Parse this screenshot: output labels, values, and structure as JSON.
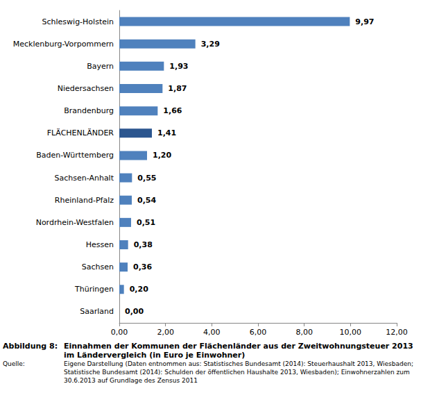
{
  "chart_data": {
    "type": "bar",
    "orientation": "horizontal",
    "title": "Einnahmen der Kommunen der Flächenländer aus der Zweitwohnungsteuer 2013 im Ländervergleich (in Euro je Einwohner)",
    "categories": [
      "Schleswig-Holstein",
      "Mecklenburg-Vorpommern",
      "Bayern",
      "Niedersachsen",
      "Brandenburg",
      "FLÄCHENLÄNDER",
      "Baden-Württemberg",
      "Sachsen-Anhalt",
      "Rheinland-Pfalz",
      "Nordrhein-Westfalen",
      "Hessen",
      "Sachsen",
      "Thüringen",
      "Saarland"
    ],
    "values": [
      9.97,
      3.29,
      1.93,
      1.87,
      1.66,
      1.41,
      1.2,
      0.55,
      0.54,
      0.51,
      0.38,
      0.36,
      0.2,
      0.0
    ],
    "value_labels": [
      "9,97",
      "3,29",
      "1,93",
      "1,87",
      "1,66",
      "1,41",
      "1,20",
      "0,55",
      "0,54",
      "0,51",
      "0,38",
      "0,36",
      "0,20",
      "0,00"
    ],
    "colors": [
      "#4f81bd",
      "#4f81bd",
      "#4f81bd",
      "#4f81bd",
      "#4f81bd",
      "#2c568f",
      "#4f81bd",
      "#4f81bd",
      "#4f81bd",
      "#4f81bd",
      "#4f81bd",
      "#4f81bd",
      "#4f81bd",
      "#4f81bd"
    ],
    "xlim": [
      0,
      12
    ],
    "xticks": [
      {
        "value": 0,
        "label": "0,00"
      },
      {
        "value": 2,
        "label": "2,00"
      },
      {
        "value": 4,
        "label": "4,00"
      },
      {
        "value": 6,
        "label": "6,00"
      },
      {
        "value": 8,
        "label": "8,00"
      },
      {
        "value": 10,
        "label": "10,00"
      },
      {
        "value": 12,
        "label": "12,00"
      }
    ],
    "grid": false,
    "data_labels": true
  },
  "caption": {
    "label": "Abbildung 8:"
  },
  "source": {
    "label": "Quelle:",
    "text": "Eigene Darstellung (Daten entnommen aus: Statistisches Bundesamt (2014): Steuerhaushalt 2013, Wiesbaden; Statistische Bundesamt (2014): Schulden der öffentlichen Haushalte 2013, Wiesbaden); Einwohnerzahlen zum 30.6.2013 auf Grundlage des Zensus 2011"
  }
}
